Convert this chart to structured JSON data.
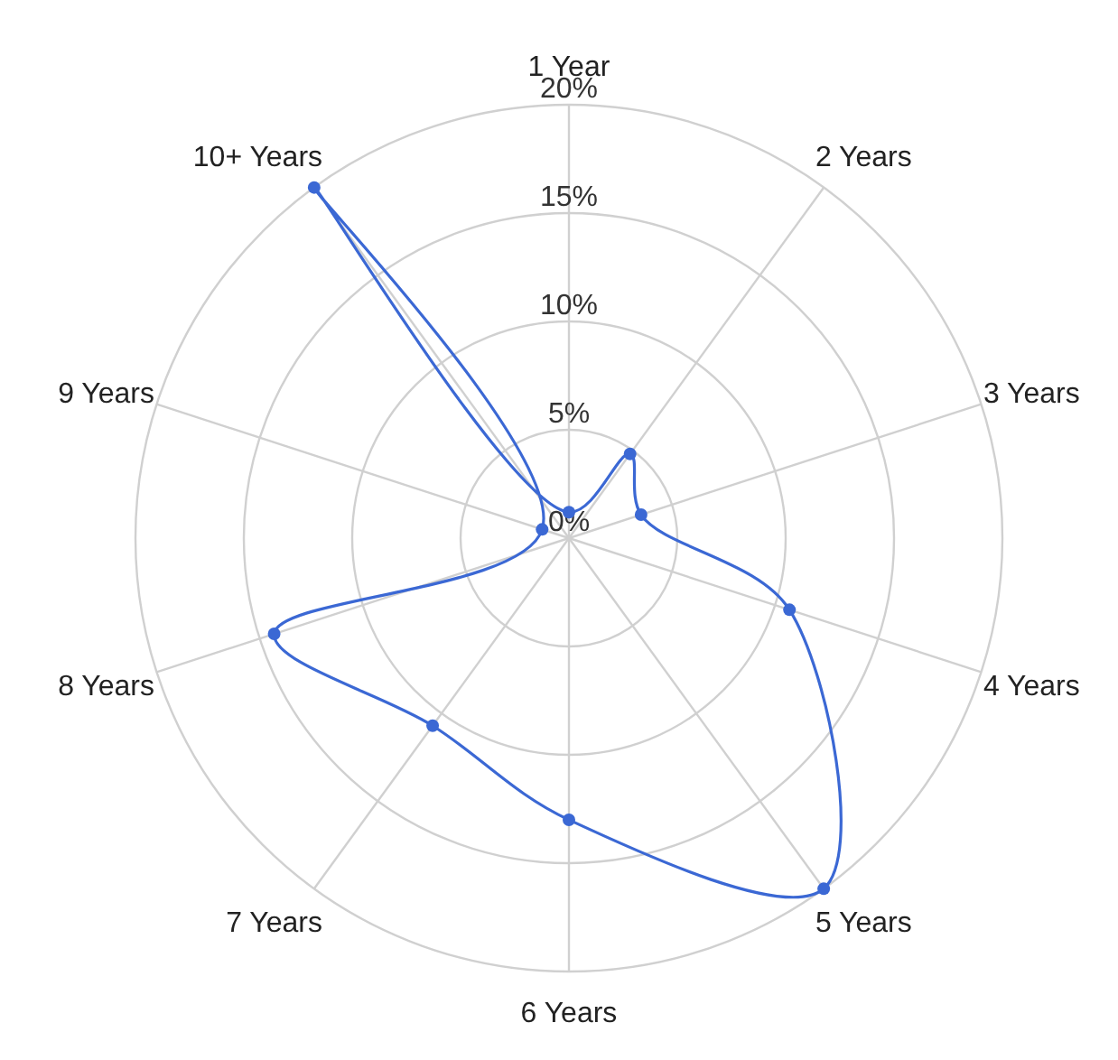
{
  "chart_data": {
    "type": "radar",
    "categories": [
      "1 Year",
      "2 Years",
      "3 Years",
      "4 Years",
      "5 Years",
      "6 Years",
      "7 Years",
      "8 Years",
      "9 Years",
      "10+ Years"
    ],
    "series": [
      {
        "color": "#3b68d4",
        "values": [
          1.2,
          4.8,
          3.5,
          10.7,
          20,
          13,
          10.7,
          14.3,
          1.3,
          20
        ]
      }
    ],
    "ylim": [
      0,
      20
    ],
    "yticks": [
      {
        "value": 0,
        "label": "0%"
      },
      {
        "value": 5,
        "label": "5%"
      },
      {
        "value": 10,
        "label": "10%"
      },
      {
        "value": 15,
        "label": "15%"
      },
      {
        "value": 20,
        "label": "20%"
      }
    ],
    "grid": true,
    "marker": "circle"
  }
}
